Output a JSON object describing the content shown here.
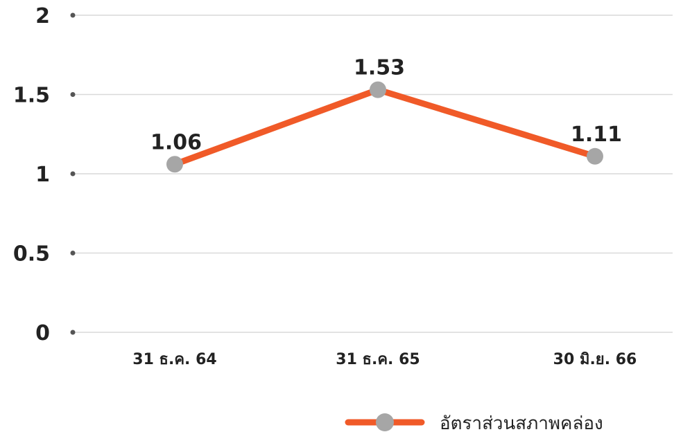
{
  "chart_data": {
    "type": "line",
    "title": "",
    "xlabel": "",
    "ylabel": "",
    "categories": [
      "31 ธ.ค. 64",
      "31 ธ.ค. 65",
      "30 มิ.ย. 66"
    ],
    "series": [
      {
        "name": "อัตราส่วนสภาพคล่อง",
        "values": [
          1.06,
          1.53,
          1.11
        ],
        "data_labels": [
          "1.06",
          "1.53",
          "1.11"
        ],
        "line_color": "#f05a28",
        "marker_color": "#a6a6a6"
      }
    ],
    "y_ticks": [
      0,
      0.5,
      1,
      1.5,
      2
    ],
    "y_tick_labels": [
      "0",
      "0.5",
      "1",
      "1.5",
      "2"
    ],
    "ylim": [
      0,
      2
    ],
    "grid": true,
    "grid_color": "#d9d9d9",
    "legend": "bottom-right"
  }
}
